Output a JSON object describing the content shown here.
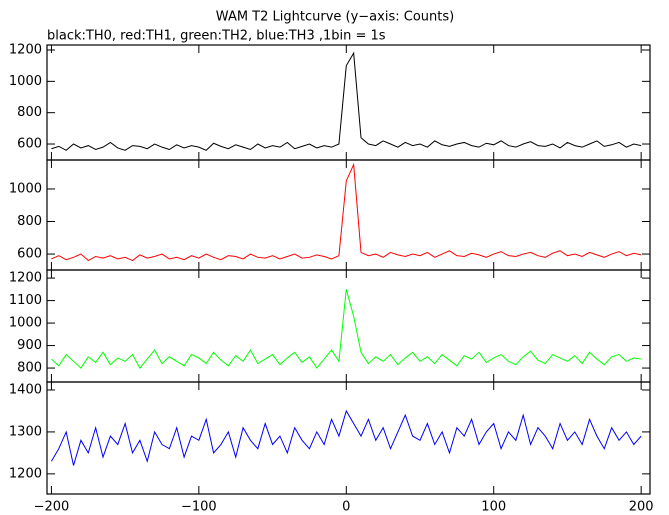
{
  "chart_data": [
    {
      "type": "line",
      "title": "WAM T2 Lightcurve (y−axis: Counts)",
      "subtitle": "black:TH0, red:TH1, green:TH2, blue:TH3 ,1bin = 1s",
      "x": [
        -200,
        -195,
        -190,
        -185,
        -180,
        -175,
        -170,
        -165,
        -160,
        -155,
        -150,
        -145,
        -140,
        -135,
        -130,
        -125,
        -120,
        -115,
        -110,
        -105,
        -100,
        -95,
        -90,
        -85,
        -80,
        -75,
        -70,
        -65,
        -60,
        -55,
        -50,
        -45,
        -40,
        -35,
        -30,
        -25,
        -20,
        -15,
        -10,
        -5,
        0,
        5,
        10,
        15,
        20,
        25,
        30,
        35,
        40,
        45,
        50,
        55,
        60,
        65,
        70,
        75,
        80,
        85,
        90,
        95,
        100,
        105,
        110,
        115,
        120,
        125,
        130,
        135,
        140,
        145,
        150,
        155,
        160,
        165,
        170,
        175,
        180,
        185,
        190,
        195,
        200
      ],
      "series": [
        {
          "name": "TH0",
          "color": "#000000",
          "values": [
            570,
            585,
            560,
            600,
            575,
            590,
            565,
            580,
            610,
            575,
            560,
            590,
            585,
            570,
            600,
            580,
            565,
            595,
            575,
            590,
            580,
            560,
            605,
            585,
            570,
            595,
            580,
            565,
            600,
            575,
            590,
            580,
            610,
            570,
            585,
            600,
            575,
            590,
            580,
            600,
            1100,
            1180,
            640,
            600,
            590,
            620,
            600,
            580,
            610,
            590,
            600,
            580,
            620,
            595,
            585,
            600,
            610,
            590,
            580,
            605,
            595,
            620,
            590,
            580,
            600,
            615,
            590,
            585,
            600,
            575,
            610,
            590,
            580,
            600,
            620,
            585,
            595,
            610,
            580,
            600,
            590
          ]
        }
      ],
      "xlim": [
        -203,
        206
      ],
      "xticks": [
        -200,
        -100,
        0,
        100,
        200
      ],
      "ylim": [
        498,
        1232
      ],
      "yticks": [
        600,
        800,
        1000,
        1200
      ]
    },
    {
      "type": "line",
      "x": [
        -200,
        -195,
        -190,
        -185,
        -180,
        -175,
        -170,
        -165,
        -160,
        -155,
        -150,
        -145,
        -140,
        -135,
        -130,
        -125,
        -120,
        -115,
        -110,
        -105,
        -100,
        -95,
        -90,
        -85,
        -80,
        -75,
        -70,
        -65,
        -60,
        -55,
        -50,
        -45,
        -40,
        -35,
        -30,
        -25,
        -20,
        -15,
        -10,
        -5,
        0,
        5,
        10,
        15,
        20,
        25,
        30,
        35,
        40,
        45,
        50,
        55,
        60,
        65,
        70,
        75,
        80,
        85,
        90,
        95,
        100,
        105,
        110,
        115,
        120,
        125,
        130,
        135,
        140,
        145,
        150,
        155,
        160,
        165,
        170,
        175,
        180,
        185,
        190,
        195,
        200
      ],
      "series": [
        {
          "name": "TH1",
          "color": "#ff0000",
          "values": [
            570,
            590,
            565,
            580,
            600,
            560,
            585,
            575,
            590,
            570,
            580,
            560,
            595,
            575,
            585,
            600,
            570,
            580,
            565,
            590,
            575,
            600,
            580,
            565,
            590,
            585,
            570,
            600,
            580,
            575,
            590,
            570,
            585,
            600,
            575,
            580,
            595,
            585,
            570,
            590,
            1050,
            1150,
            610,
            590,
            600,
            580,
            610,
            595,
            585,
            600,
            590,
            610,
            580,
            600,
            620,
            590,
            585,
            605,
            595,
            580,
            600,
            615,
            590,
            585,
            600,
            610,
            590,
            580,
            605,
            620,
            590,
            600,
            585,
            610,
            595,
            580,
            600,
            615,
            590,
            605,
            595
          ]
        }
      ],
      "xlim": [
        -203,
        206
      ],
      "xticks": [
        -200,
        -100,
        0,
        100,
        200
      ],
      "ylim": [
        502,
        1178
      ],
      "yticks": [
        600,
        800,
        1000
      ]
    },
    {
      "type": "line",
      "x": [
        -200,
        -195,
        -190,
        -185,
        -180,
        -175,
        -170,
        -165,
        -160,
        -155,
        -150,
        -145,
        -140,
        -135,
        -130,
        -125,
        -120,
        -115,
        -110,
        -105,
        -100,
        -95,
        -90,
        -85,
        -80,
        -75,
        -70,
        -65,
        -60,
        -55,
        -50,
        -45,
        -40,
        -35,
        -30,
        -25,
        -20,
        -15,
        -10,
        -5,
        0,
        5,
        10,
        15,
        20,
        25,
        30,
        35,
        40,
        45,
        50,
        55,
        60,
        65,
        70,
        75,
        80,
        85,
        90,
        95,
        100,
        105,
        110,
        115,
        120,
        125,
        130,
        135,
        140,
        145,
        150,
        155,
        160,
        165,
        170,
        175,
        180,
        185,
        190,
        195,
        200
      ],
      "series": [
        {
          "name": "TH2",
          "color": "#00ff00",
          "values": [
            840,
            810,
            860,
            830,
            800,
            850,
            825,
            870,
            815,
            845,
            830,
            860,
            800,
            840,
            880,
            820,
            850,
            830,
            810,
            860,
            845,
            820,
            870,
            835,
            810,
            855,
            830,
            880,
            820,
            840,
            860,
            815,
            845,
            870,
            825,
            850,
            800,
            840,
            880,
            830,
            1150,
            1030,
            870,
            820,
            850,
            830,
            860,
            815,
            845,
            870,
            830,
            850,
            820,
            860,
            835,
            810,
            855,
            840,
            870,
            825,
            845,
            860,
            830,
            815,
            850,
            875,
            835,
            820,
            860,
            845,
            830,
            855,
            820,
            870,
            840,
            815,
            850,
            860,
            830,
            845,
            840
          ]
        }
      ],
      "xlim": [
        -203,
        206
      ],
      "xticks": [
        -200,
        -100,
        0,
        100,
        200
      ],
      "ylim": [
        738,
        1236
      ],
      "yticks": [
        800,
        900,
        1000,
        1100,
        1200
      ]
    },
    {
      "type": "line",
      "x": [
        -200,
        -195,
        -190,
        -185,
        -180,
        -175,
        -170,
        -165,
        -160,
        -155,
        -150,
        -145,
        -140,
        -135,
        -130,
        -125,
        -120,
        -115,
        -110,
        -105,
        -100,
        -95,
        -90,
        -85,
        -80,
        -75,
        -70,
        -65,
        -60,
        -55,
        -50,
        -45,
        -40,
        -35,
        -30,
        -25,
        -20,
        -15,
        -10,
        -5,
        0,
        5,
        10,
        15,
        20,
        25,
        30,
        35,
        40,
        45,
        50,
        55,
        60,
        65,
        70,
        75,
        80,
        85,
        90,
        95,
        100,
        105,
        110,
        115,
        120,
        125,
        130,
        135,
        140,
        145,
        150,
        155,
        160,
        165,
        170,
        175,
        180,
        185,
        190,
        195,
        200
      ],
      "series": [
        {
          "name": "TH3",
          "color": "#0000ff",
          "values": [
            1230,
            1260,
            1300,
            1220,
            1280,
            1250,
            1310,
            1240,
            1290,
            1270,
            1320,
            1250,
            1280,
            1230,
            1300,
            1270,
            1260,
            1310,
            1240,
            1290,
            1280,
            1330,
            1250,
            1270,
            1300,
            1240,
            1310,
            1280,
            1260,
            1320,
            1270,
            1290,
            1250,
            1310,
            1280,
            1260,
            1300,
            1270,
            1330,
            1290,
            1350,
            1320,
            1290,
            1330,
            1280,
            1310,
            1260,
            1300,
            1340,
            1290,
            1280,
            1320,
            1270,
            1300,
            1250,
            1310,
            1290,
            1330,
            1270,
            1300,
            1320,
            1260,
            1300,
            1280,
            1340,
            1270,
            1310,
            1290,
            1260,
            1320,
            1280,
            1300,
            1270,
            1330,
            1290,
            1260,
            1310,
            1280,
            1300,
            1270,
            1290
          ]
        }
      ],
      "xlim": [
        -203,
        206
      ],
      "xticks": [
        {
          "value": -200,
          "label": "−200"
        },
        {
          "value": -100,
          "label": "−100"
        },
        {
          "value": 0,
          "label": "0"
        },
        {
          "value": 100,
          "label": "100"
        },
        {
          "value": 200,
          "label": "200"
        }
      ],
      "ylim": [
        1152,
        1419
      ],
      "yticks": [
        1200,
        1300,
        1400
      ]
    }
  ]
}
